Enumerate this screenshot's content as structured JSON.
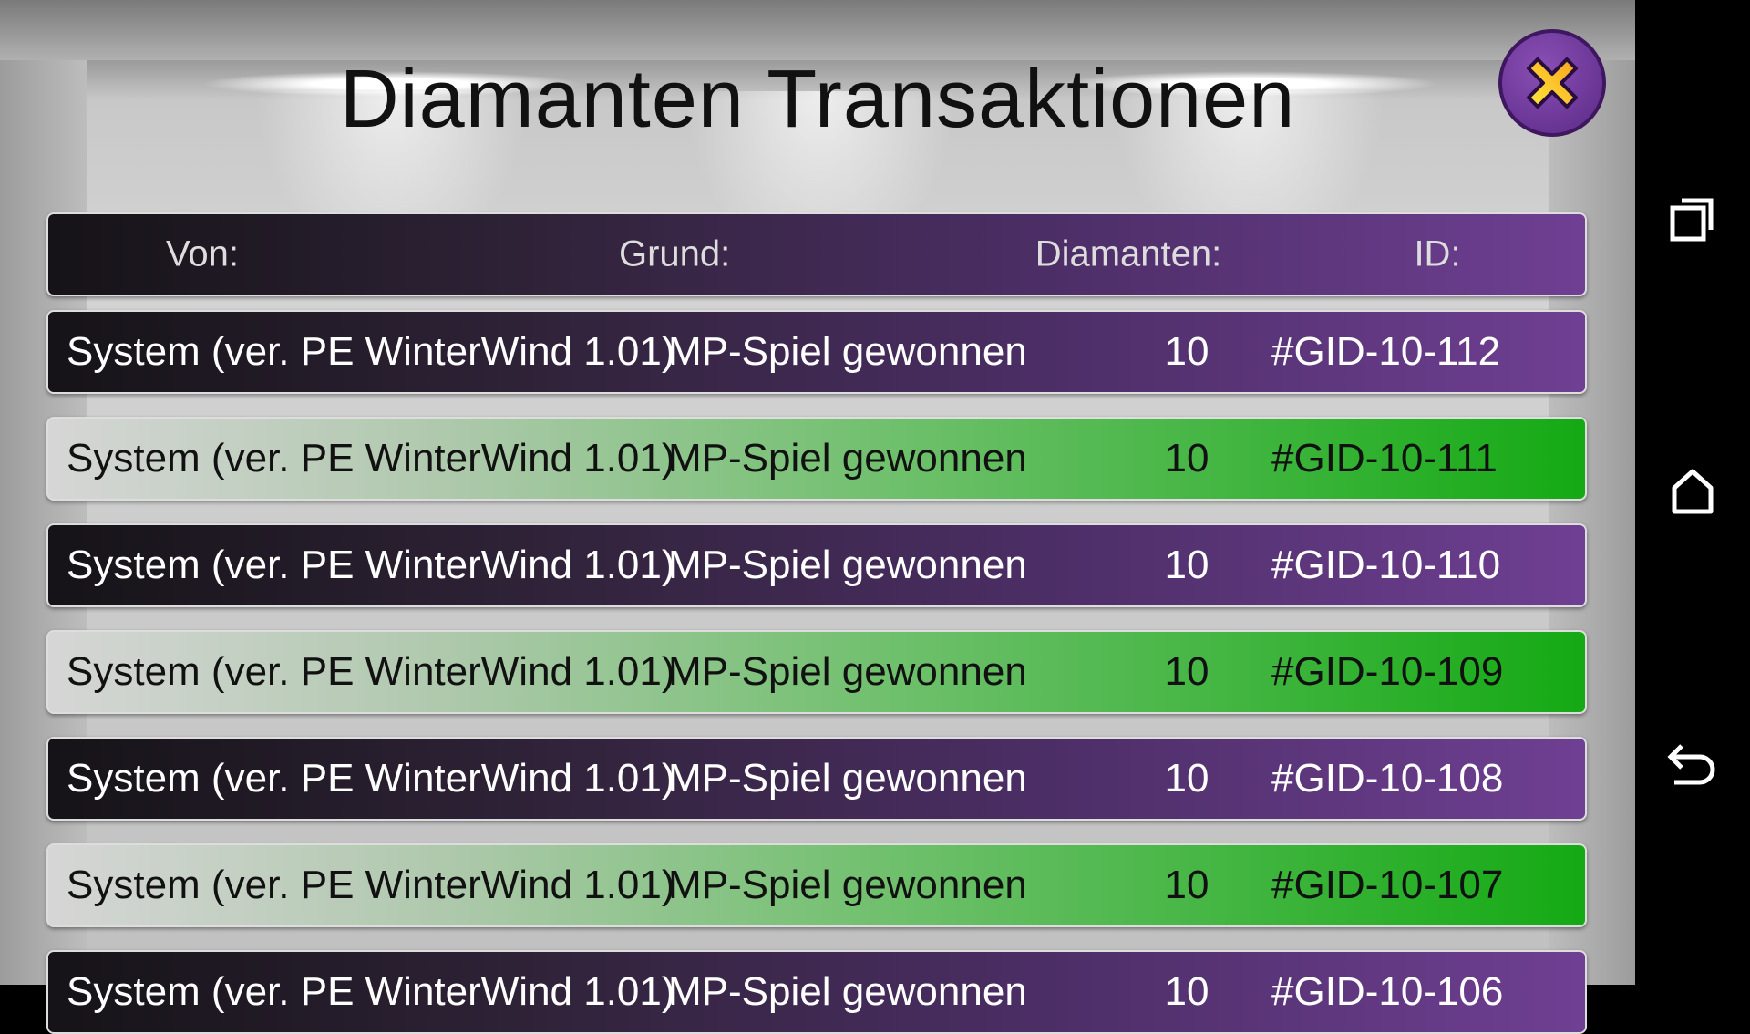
{
  "title": "Diamanten Transaktionen",
  "close_icon": "close-x-icon",
  "colors": {
    "purple_row": "#6f3f93",
    "green_row": "#14aa14",
    "close_button": "#6a379a",
    "close_x": "#f7c81e"
  },
  "table": {
    "headers": [
      "Von:",
      "Grund:",
      "Diamanten:",
      "ID:"
    ],
    "rows": [
      {
        "from": "System (ver. PE WinterWind 1.01)",
        "reason": "MP-Spiel gewonnen",
        "diamonds": "10",
        "id": "#GID-10-112",
        "style": "purple"
      },
      {
        "from": "System (ver. PE WinterWind 1.01)",
        "reason": "MP-Spiel gewonnen",
        "diamonds": "10",
        "id": "#GID-10-111",
        "style": "green"
      },
      {
        "from": "System (ver. PE WinterWind 1.01)",
        "reason": "MP-Spiel gewonnen",
        "diamonds": "10",
        "id": "#GID-10-110",
        "style": "purple"
      },
      {
        "from": "System (ver. PE WinterWind 1.01)",
        "reason": "MP-Spiel gewonnen",
        "diamonds": "10",
        "id": "#GID-10-109",
        "style": "green"
      },
      {
        "from": "System (ver. PE WinterWind 1.01)",
        "reason": "MP-Spiel gewonnen",
        "diamonds": "10",
        "id": "#GID-10-108",
        "style": "purple"
      },
      {
        "from": "System (ver. PE WinterWind 1.01)",
        "reason": "MP-Spiel gewonnen",
        "diamonds": "10",
        "id": "#GID-10-107",
        "style": "green"
      },
      {
        "from": "System (ver. PE WinterWind 1.01)",
        "reason": "MP-Spiel gewonnen",
        "diamonds": "10",
        "id": "#GID-10-106",
        "style": "purple"
      }
    ]
  },
  "nav": {
    "icons": [
      "recent-apps-icon",
      "home-icon",
      "back-icon"
    ]
  }
}
